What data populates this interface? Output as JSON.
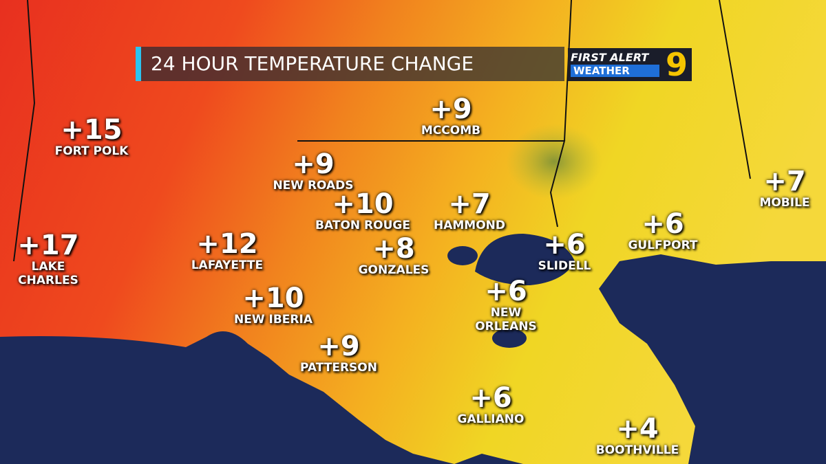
{
  "header": {
    "title": "24 HOUR TEMPERATURE CHANGE",
    "logo_top": "FIRST ALERT",
    "logo_bottom": "WEATHER",
    "logo_channel": "9"
  },
  "cities": [
    {
      "change": "+15",
      "name": "FORT POLK"
    },
    {
      "change": "+17",
      "name": "LAKE CHARLES"
    },
    {
      "change": "+9",
      "name": "MCCOMB"
    },
    {
      "change": "+9",
      "name": "NEW ROADS"
    },
    {
      "change": "+10",
      "name": "BATON ROUGE"
    },
    {
      "change": "+7",
      "name": "HAMMOND"
    },
    {
      "change": "+12",
      "name": "LAFAYETTE"
    },
    {
      "change": "+8",
      "name": "GONZALES"
    },
    {
      "change": "+6",
      "name": "SLIDELL"
    },
    {
      "change": "+6",
      "name": "GULFPORT"
    },
    {
      "change": "+7",
      "name": "MOBILE"
    },
    {
      "change": "+10",
      "name": "NEW IBERIA"
    },
    {
      "change": "+6",
      "name": "NEW ORLEANS"
    },
    {
      "change": "+9",
      "name": "PATTERSON"
    },
    {
      "change": "+6",
      "name": "GALLIANO"
    },
    {
      "change": "+4",
      "name": "BOOTHVILLE"
    }
  ]
}
